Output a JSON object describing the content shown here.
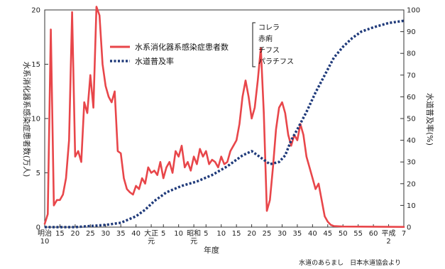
{
  "chart_data": {
    "type": "line",
    "title": "",
    "xlabel": "年度",
    "ylabel_left": "水系消化器系感染症患者数(万人)",
    "ylabel_right": "水道普及率(%)",
    "ylim_left": [
      0,
      20
    ],
    "ylim_right": [
      0,
      100
    ],
    "y_ticks_left": [
      "0",
      "5",
      "10",
      "15",
      "20"
    ],
    "y_ticks_right": [
      "0",
      "10",
      "20",
      "30",
      "40",
      "50",
      "60",
      "70",
      "80",
      "90",
      "100"
    ],
    "x_ticks": [
      {
        "x": 10,
        "label": "明治",
        "sub": "10"
      },
      {
        "x": 15,
        "label": "15"
      },
      {
        "x": 20,
        "label": "20"
      },
      {
        "x": 25,
        "label": "25"
      },
      {
        "x": 30,
        "label": "30"
      },
      {
        "x": 35,
        "label": "35"
      },
      {
        "x": 40,
        "label": "40"
      },
      {
        "x": 45,
        "label": "大正",
        "sub": "元"
      },
      {
        "x": 49,
        "label": "5"
      },
      {
        "x": 54,
        "label": "10"
      },
      {
        "x": 59,
        "label": "昭和",
        "sub": "元"
      },
      {
        "x": 63,
        "label": "5"
      },
      {
        "x": 68,
        "label": "10"
      },
      {
        "x": 73,
        "label": "15"
      },
      {
        "x": 78,
        "label": "20"
      },
      {
        "x": 83,
        "label": "25"
      },
      {
        "x": 88,
        "label": "30"
      },
      {
        "x": 93,
        "label": "35"
      },
      {
        "x": 98,
        "label": "40"
      },
      {
        "x": 103,
        "label": "45"
      },
      {
        "x": 108,
        "label": "50"
      },
      {
        "x": 113,
        "label": "55"
      },
      {
        "x": 118,
        "label": "60"
      },
      {
        "x": 123,
        "label": "平成",
        "sub": "2"
      },
      {
        "x": 128,
        "label": "7"
      }
    ],
    "xlim": [
      10,
      128
    ],
    "grid": false,
    "legend_position": "top-center",
    "series": [
      {
        "name": "水系消化器系感染症患者数",
        "axis": "left",
        "style": "solid",
        "color": "#e8464a",
        "points": [
          [
            10,
            0.3
          ],
          [
            11,
            1.2
          ],
          [
            12,
            18.2
          ],
          [
            13,
            2.0
          ],
          [
            14,
            2.5
          ],
          [
            15,
            2.5
          ],
          [
            16,
            3.0
          ],
          [
            17,
            4.5
          ],
          [
            18,
            8.0
          ],
          [
            19,
            19.8
          ],
          [
            20,
            6.5
          ],
          [
            21,
            7.0
          ],
          [
            22,
            6.0
          ],
          [
            23,
            11.5
          ],
          [
            24,
            10.5
          ],
          [
            25,
            14.0
          ],
          [
            26,
            11.0
          ],
          [
            27,
            20.3
          ],
          [
            28,
            19.5
          ],
          [
            29,
            15.0
          ],
          [
            30,
            13.0
          ],
          [
            31,
            12.0
          ],
          [
            32,
            11.5
          ],
          [
            33,
            12.5
          ],
          [
            34,
            7.0
          ],
          [
            35,
            6.8
          ],
          [
            36,
            4.5
          ],
          [
            37,
            3.5
          ],
          [
            38,
            3.2
          ],
          [
            39,
            3.0
          ],
          [
            40,
            3.8
          ],
          [
            41,
            3.5
          ],
          [
            42,
            4.5
          ],
          [
            43,
            4.0
          ],
          [
            44,
            5.5
          ],
          [
            45,
            5.0
          ],
          [
            46,
            5.2
          ],
          [
            47,
            4.8
          ],
          [
            48,
            6.0
          ],
          [
            49,
            4.5
          ],
          [
            50,
            5.5
          ],
          [
            51,
            6.0
          ],
          [
            52,
            5.0
          ],
          [
            53,
            7.0
          ],
          [
            54,
            6.5
          ],
          [
            55,
            7.5
          ],
          [
            56,
            5.5
          ],
          [
            57,
            6.0
          ],
          [
            58,
            5.2
          ],
          [
            59,
            6.5
          ],
          [
            60,
            5.8
          ],
          [
            61,
            7.2
          ],
          [
            62,
            6.5
          ],
          [
            63,
            7.0
          ],
          [
            64,
            5.8
          ],
          [
            65,
            6.2
          ],
          [
            66,
            6.0
          ],
          [
            67,
            5.5
          ],
          [
            68,
            6.5
          ],
          [
            69,
            5.8
          ],
          [
            70,
            6.0
          ],
          [
            71,
            7.0
          ],
          [
            72,
            7.5
          ],
          [
            73,
            8.0
          ],
          [
            74,
            9.5
          ],
          [
            75,
            12.0
          ],
          [
            76,
            13.5
          ],
          [
            77,
            12.0
          ],
          [
            78,
            10.0
          ],
          [
            79,
            11.0
          ],
          [
            80,
            13.5
          ],
          [
            81,
            16.5
          ],
          [
            82,
            10.5
          ],
          [
            83,
            1.5
          ],
          [
            84,
            2.5
          ],
          [
            85,
            5.5
          ],
          [
            86,
            9.0
          ],
          [
            87,
            11.0
          ],
          [
            88,
            11.5
          ],
          [
            89,
            10.5
          ],
          [
            90,
            8.5
          ],
          [
            91,
            7.5
          ],
          [
            92,
            8.5
          ],
          [
            93,
            8.0
          ],
          [
            94,
            9.5
          ],
          [
            95,
            8.5
          ],
          [
            96,
            6.5
          ],
          [
            97,
            5.5
          ],
          [
            98,
            4.5
          ],
          [
            99,
            3.5
          ],
          [
            100,
            4.0
          ],
          [
            101,
            2.5
          ],
          [
            102,
            1.0
          ],
          [
            103,
            0.5
          ],
          [
            104,
            0.2
          ],
          [
            105,
            0.1
          ],
          [
            108,
            0.05
          ],
          [
            128,
            0.02
          ]
        ]
      },
      {
        "name": "水道普及率",
        "axis": "right",
        "style": "dotted",
        "color": "#1f3a7a",
        "points": [
          [
            10,
            0
          ],
          [
            20,
            0
          ],
          [
            30,
            1
          ],
          [
            35,
            2
          ],
          [
            40,
            5
          ],
          [
            43,
            8
          ],
          [
            46,
            12
          ],
          [
            50,
            16
          ],
          [
            55,
            19
          ],
          [
            60,
            21
          ],
          [
            65,
            24
          ],
          [
            70,
            28
          ],
          [
            75,
            33
          ],
          [
            78,
            35
          ],
          [
            80,
            33
          ],
          [
            84,
            29
          ],
          [
            87,
            30
          ],
          [
            89,
            33
          ],
          [
            91,
            40
          ],
          [
            93,
            45
          ],
          [
            96,
            53
          ],
          [
            99,
            62
          ],
          [
            102,
            70
          ],
          [
            105,
            78
          ],
          [
            108,
            83
          ],
          [
            111,
            87
          ],
          [
            114,
            90
          ],
          [
            118,
            92
          ],
          [
            123,
            94
          ],
          [
            128,
            95
          ]
        ]
      }
    ],
    "legend": {
      "series1": "水系消化器系感染症患者数",
      "series2": "水道普及率",
      "diseases": [
        "コレラ",
        "赤痢",
        "チフス",
        "パラチフス"
      ]
    }
  },
  "source": "水道のあらまし　日本水道協会より"
}
